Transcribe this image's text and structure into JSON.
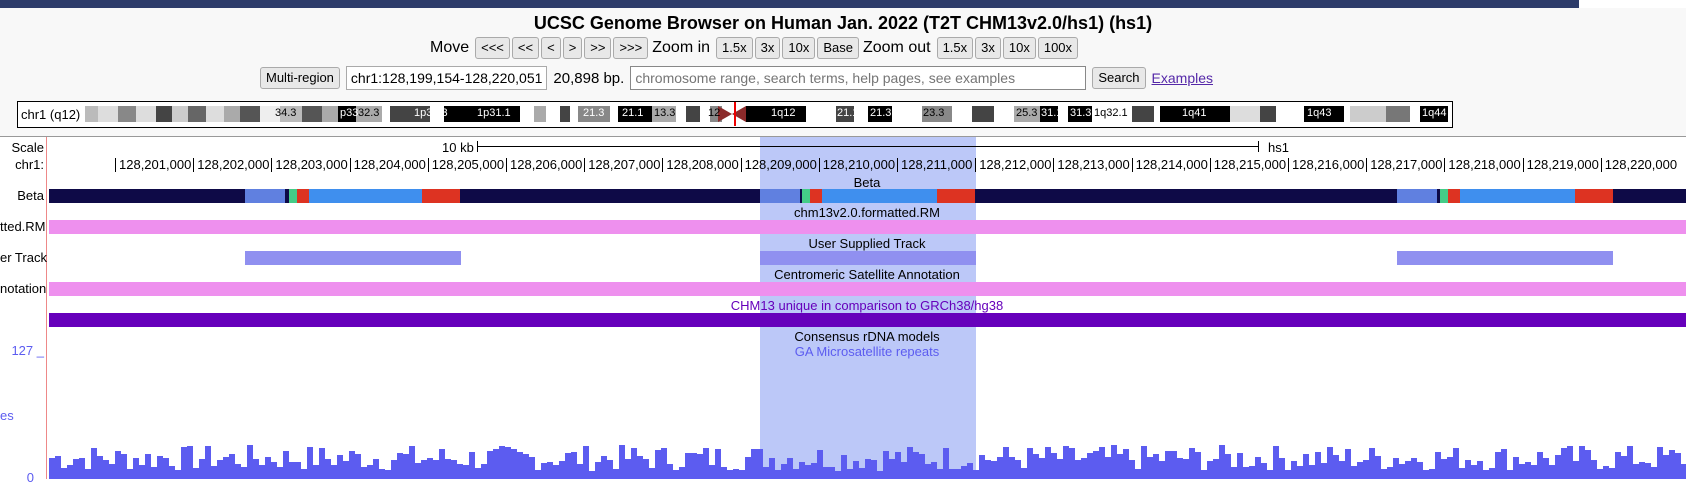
{
  "page_title": "UCSC Genome Browser on Human Jan. 2022 (T2T CHM13v2.0/hs1) (hs1)",
  "nav": {
    "move_label": "Move",
    "move_buttons": [
      "<<<",
      "<<",
      "<",
      ">",
      ">>",
      ">>>"
    ],
    "zoom_in_label": "Zoom in",
    "zoom_in_buttons": [
      "1.5x",
      "3x",
      "10x",
      "Base"
    ],
    "zoom_out_label": "Zoom out",
    "zoom_out_buttons": [
      "1.5x",
      "3x",
      "10x",
      "100x"
    ]
  },
  "position": {
    "multi_region": "Multi-region",
    "value": "chr1:128,199,154-128,220,051",
    "size": "20,898 bp.",
    "search_placeholder": "chromosome range, search terms, help pages, see examples",
    "search_button": "Search",
    "examples_link": "Examples"
  },
  "ideogram": {
    "label": "chr1 (q12)",
    "bands": [
      "34.3",
      "p33",
      "32.3",
      "1p31.3",
      "1p31.1",
      "21.3",
      "21.1",
      "13.3",
      "12",
      "1q12",
      "21.1",
      "21.3",
      "23.3",
      "25.3",
      "31.1",
      "31.3",
      "1q32.1",
      "1q41",
      "1q43",
      "1q44"
    ]
  },
  "scale": {
    "label": "Scale",
    "chrom_label": "chr1:",
    "scale_text": "10 kb",
    "assembly": "hs1",
    "ticks": [
      "128,201,000",
      "128,202,000",
      "128,203,000",
      "128,204,000",
      "128,205,000",
      "128,206,000",
      "128,207,000",
      "128,208,000",
      "128,209,000",
      "128,210,000",
      "128,211,000",
      "128,212,000",
      "128,213,000",
      "128,214,000",
      "128,215,000",
      "128,216,000",
      "128,217,000",
      "128,218,000",
      "128,219,000",
      "128,220,000"
    ]
  },
  "tracks": {
    "beta": {
      "left": "Beta",
      "center": "Beta"
    },
    "rm": {
      "left": "tted.RM",
      "center": "chm13v2.0.formatted.RM"
    },
    "user": {
      "left": "er Track",
      "center": "User Supplied Track"
    },
    "cenSat": {
      "left": "notation",
      "center": "Centromeric Satellite Annotation"
    },
    "unique": {
      "center": "CHM13 unique in comparison to GRCh38/hg38"
    },
    "rdna": {
      "center": "Consensus rDNA models"
    },
    "microsat": {
      "center": "GA Microsatellite repeats"
    },
    "signal": {
      "max": "127 _",
      "left": "es",
      "min": "0"
    }
  },
  "colors": {
    "dark_navy": "#0e0a47",
    "pink": "#ee90ee",
    "purple": "#6600bb",
    "highlight": "#bcc8f8",
    "histogram": "#5c5cf0"
  }
}
